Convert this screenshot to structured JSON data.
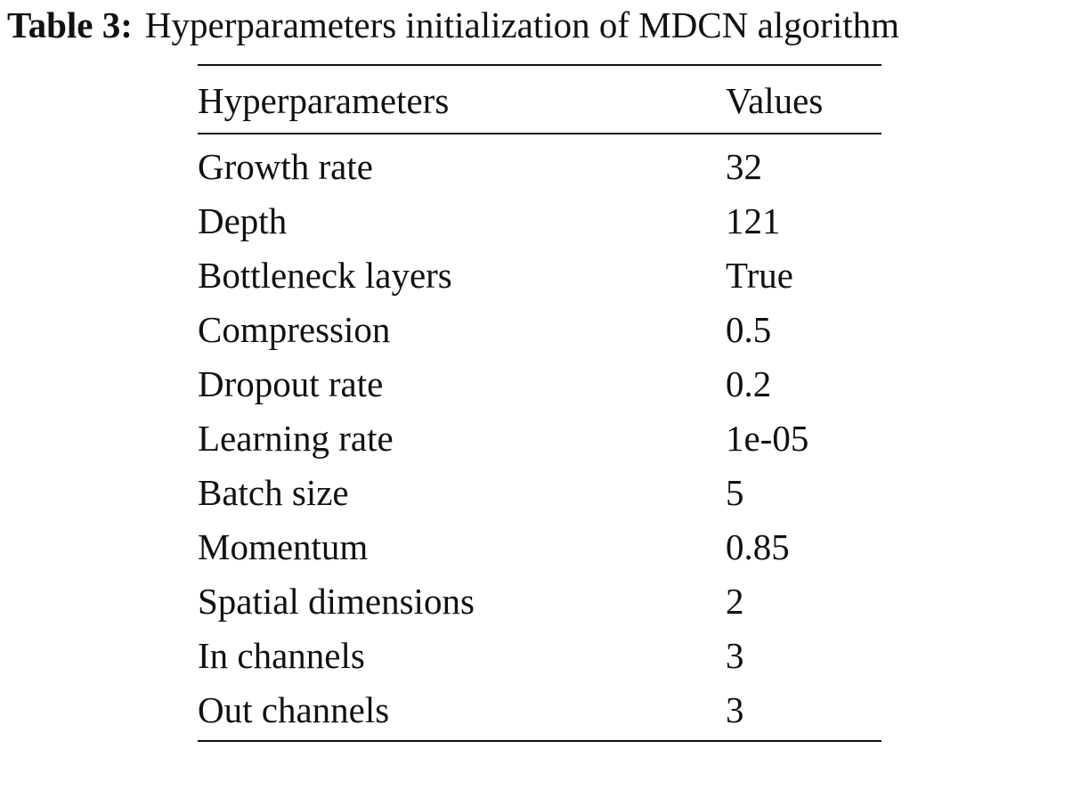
{
  "caption": {
    "label": "Table 3:",
    "text": "Hyperparameters initialization of MDCN algorithm"
  },
  "table": {
    "header": [
      "Hyperparameters",
      "Values"
    ],
    "rows": [
      [
        "Growth rate",
        "32"
      ],
      [
        "Depth",
        "121"
      ],
      [
        "Bottleneck layers",
        "True"
      ],
      [
        "Compression",
        "0.5"
      ],
      [
        "Dropout rate",
        "0.2"
      ],
      [
        "Learning rate",
        "1e-05"
      ],
      [
        "Batch size",
        "5"
      ],
      [
        "Momentum",
        "0.85"
      ],
      [
        "Spatial dimensions",
        "2"
      ],
      [
        "In channels",
        "3"
      ],
      [
        "Out channels",
        "3"
      ]
    ]
  }
}
